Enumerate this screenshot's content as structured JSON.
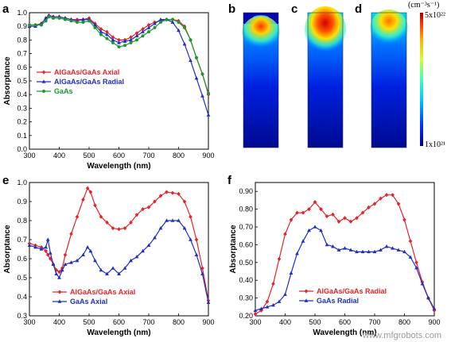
{
  "panel_labels": {
    "a": "a",
    "b": "b",
    "c": "c",
    "d": "d",
    "e": "e",
    "f": "f"
  },
  "colorbar": {
    "unit": "(cm⁻³s⁻¹)",
    "max": "5x10²²",
    "min": "1x10²¹"
  },
  "watermark": "www.mfgrobots.com",
  "colors": {
    "red": "#e8222a",
    "blue": "#1f2fc4",
    "green": "#1a9a2e",
    "cmap": [
      "#00008f",
      "#0030ff",
      "#00c8ff",
      "#40ffbf",
      "#d0ff30",
      "#ffb000",
      "#ff3000",
      "#a00000"
    ]
  },
  "chart_data": [
    {
      "panel": "a",
      "type": "line",
      "xlabel": "Wavelength (nm)",
      "ylabel": "Absorptance",
      "xlim": [
        300,
        900
      ],
      "ylim": [
        0.0,
        1.0
      ],
      "xticks": [
        300,
        400,
        500,
        600,
        700,
        800,
        900
      ],
      "yticks": [
        0.0,
        0.1,
        0.2,
        0.3,
        0.4,
        0.5,
        0.6,
        0.7,
        0.8,
        0.9,
        1.0
      ],
      "legend_position": "middle-left",
      "series": [
        {
          "name": "AlGaAs/GaAs Axial",
          "color": "#e8222a",
          "marker": "diamond",
          "x": [
            300,
            320,
            340,
            355,
            365,
            380,
            400,
            420,
            440,
            460,
            480,
            500,
            520,
            540,
            560,
            580,
            600,
            620,
            640,
            660,
            680,
            700,
            720,
            740,
            760,
            780,
            800,
            820,
            840,
            860,
            880,
            900
          ],
          "y": [
            0.91,
            0.91,
            0.92,
            0.96,
            0.98,
            0.97,
            0.97,
            0.96,
            0.95,
            0.95,
            0.95,
            0.96,
            0.92,
            0.88,
            0.86,
            0.82,
            0.8,
            0.8,
            0.82,
            0.85,
            0.88,
            0.91,
            0.93,
            0.94,
            0.95,
            0.95,
            0.94,
            0.9,
            0.8,
            0.67,
            0.55,
            0.4
          ]
        },
        {
          "name": "AlGaAs/GaAs Radial",
          "color": "#1f2fc4",
          "marker": "triangle",
          "x": [
            300,
            320,
            340,
            355,
            365,
            380,
            400,
            420,
            440,
            460,
            480,
            500,
            520,
            540,
            560,
            580,
            600,
            620,
            640,
            660,
            680,
            700,
            720,
            740,
            760,
            780,
            800,
            820,
            840,
            860,
            880,
            900
          ],
          "y": [
            0.9,
            0.9,
            0.92,
            0.96,
            0.98,
            0.97,
            0.97,
            0.96,
            0.95,
            0.94,
            0.95,
            0.95,
            0.91,
            0.86,
            0.84,
            0.8,
            0.78,
            0.79,
            0.8,
            0.83,
            0.86,
            0.89,
            0.92,
            0.95,
            0.95,
            0.93,
            0.87,
            0.77,
            0.65,
            0.52,
            0.39,
            0.25
          ]
        },
        {
          "name": "GaAs",
          "color": "#1a9a2e",
          "marker": "circle",
          "x": [
            300,
            320,
            340,
            355,
            365,
            380,
            400,
            420,
            440,
            460,
            480,
            500,
            520,
            540,
            560,
            580,
            600,
            620,
            640,
            660,
            680,
            700,
            720,
            740,
            760,
            780,
            800,
            820,
            840,
            860,
            880,
            900
          ],
          "y": [
            0.91,
            0.91,
            0.91,
            0.94,
            0.97,
            0.96,
            0.96,
            0.95,
            0.94,
            0.93,
            0.93,
            0.94,
            0.89,
            0.84,
            0.81,
            0.78,
            0.75,
            0.76,
            0.78,
            0.8,
            0.83,
            0.86,
            0.89,
            0.93,
            0.95,
            0.95,
            0.93,
            0.89,
            0.8,
            0.67,
            0.55,
            0.41
          ]
        }
      ]
    },
    {
      "panel": "e",
      "type": "line",
      "xlabel": "Wavelength (nm)",
      "ylabel": "Absorptance",
      "xlim": [
        300,
        900
      ],
      "ylim": [
        0.3,
        1.0
      ],
      "xticks": [
        300,
        400,
        500,
        600,
        700,
        800,
        900
      ],
      "yticks": [
        0.3,
        0.4,
        0.5,
        0.6,
        0.7,
        0.8,
        0.9,
        1.0
      ],
      "legend_position": "bottom-left",
      "series": [
        {
          "name": "AlGaAs/GaAs Axial",
          "color": "#e8222a",
          "marker": "diamond",
          "x": [
            300,
            320,
            340,
            355,
            362,
            370,
            380,
            390,
            400,
            410,
            420,
            440,
            460,
            480,
            495,
            505,
            520,
            540,
            560,
            580,
            600,
            620,
            640,
            660,
            680,
            700,
            720,
            740,
            760,
            780,
            800,
            820,
            840,
            860,
            880,
            900
          ],
          "y": [
            0.68,
            0.67,
            0.66,
            0.64,
            0.62,
            0.6,
            0.57,
            0.54,
            0.53,
            0.55,
            0.62,
            0.73,
            0.82,
            0.91,
            0.97,
            0.95,
            0.88,
            0.82,
            0.79,
            0.76,
            0.755,
            0.76,
            0.79,
            0.83,
            0.86,
            0.87,
            0.9,
            0.93,
            0.95,
            0.945,
            0.94,
            0.9,
            0.82,
            0.7,
            0.55,
            0.38
          ]
        },
        {
          "name": "GaAs Axial",
          "color": "#1f2fc4",
          "marker": "triangle",
          "x": [
            300,
            320,
            340,
            355,
            362,
            370,
            380,
            390,
            400,
            410,
            420,
            440,
            460,
            480,
            495,
            505,
            520,
            540,
            560,
            580,
            600,
            620,
            640,
            660,
            680,
            700,
            720,
            740,
            760,
            780,
            800,
            820,
            840,
            860,
            880,
            900
          ],
          "y": [
            0.67,
            0.66,
            0.65,
            0.66,
            0.7,
            0.63,
            0.57,
            0.52,
            0.5,
            0.54,
            0.57,
            0.58,
            0.59,
            0.62,
            0.66,
            0.64,
            0.59,
            0.54,
            0.52,
            0.55,
            0.52,
            0.55,
            0.59,
            0.61,
            0.64,
            0.67,
            0.71,
            0.76,
            0.8,
            0.8,
            0.8,
            0.76,
            0.7,
            0.62,
            0.52,
            0.37
          ]
        }
      ]
    },
    {
      "panel": "f",
      "type": "line",
      "xlabel": "Wavelength (nm)",
      "ylabel": "Absorptance",
      "xlim": [
        300,
        900
      ],
      "ylim": [
        0.2,
        0.95
      ],
      "xticks": [
        300,
        400,
        500,
        600,
        700,
        800,
        900
      ],
      "yticks": [
        0.2,
        0.3,
        0.4,
        0.5,
        0.6,
        0.7,
        0.8,
        0.9
      ],
      "legend_position": "bottom-left",
      "series": [
        {
          "name": "AlGaAs/GaAs Radial",
          "color": "#e8222a",
          "marker": "diamond",
          "x": [
            300,
            320,
            340,
            360,
            380,
            400,
            420,
            440,
            460,
            480,
            500,
            520,
            540,
            560,
            580,
            600,
            620,
            640,
            660,
            680,
            700,
            720,
            740,
            760,
            780,
            800,
            820,
            840,
            860,
            880,
            900
          ],
          "y": [
            0.21,
            0.23,
            0.28,
            0.38,
            0.52,
            0.66,
            0.74,
            0.78,
            0.78,
            0.8,
            0.84,
            0.8,
            0.76,
            0.77,
            0.73,
            0.75,
            0.73,
            0.75,
            0.78,
            0.81,
            0.83,
            0.86,
            0.88,
            0.88,
            0.83,
            0.74,
            0.62,
            0.5,
            0.39,
            0.3,
            0.23
          ]
        },
        {
          "name": "GaAs Radial",
          "color": "#1f2fc4",
          "marker": "triangle",
          "x": [
            300,
            320,
            340,
            360,
            380,
            400,
            420,
            440,
            460,
            480,
            500,
            520,
            540,
            560,
            580,
            600,
            620,
            640,
            660,
            680,
            700,
            720,
            740,
            760,
            780,
            800,
            820,
            840,
            860,
            880,
            900
          ],
          "y": [
            0.23,
            0.24,
            0.25,
            0.26,
            0.28,
            0.32,
            0.44,
            0.55,
            0.62,
            0.68,
            0.7,
            0.68,
            0.6,
            0.59,
            0.57,
            0.58,
            0.57,
            0.56,
            0.56,
            0.56,
            0.56,
            0.57,
            0.59,
            0.58,
            0.57,
            0.56,
            0.53,
            0.47,
            0.38,
            0.3,
            0.24
          ]
        }
      ]
    }
  ]
}
